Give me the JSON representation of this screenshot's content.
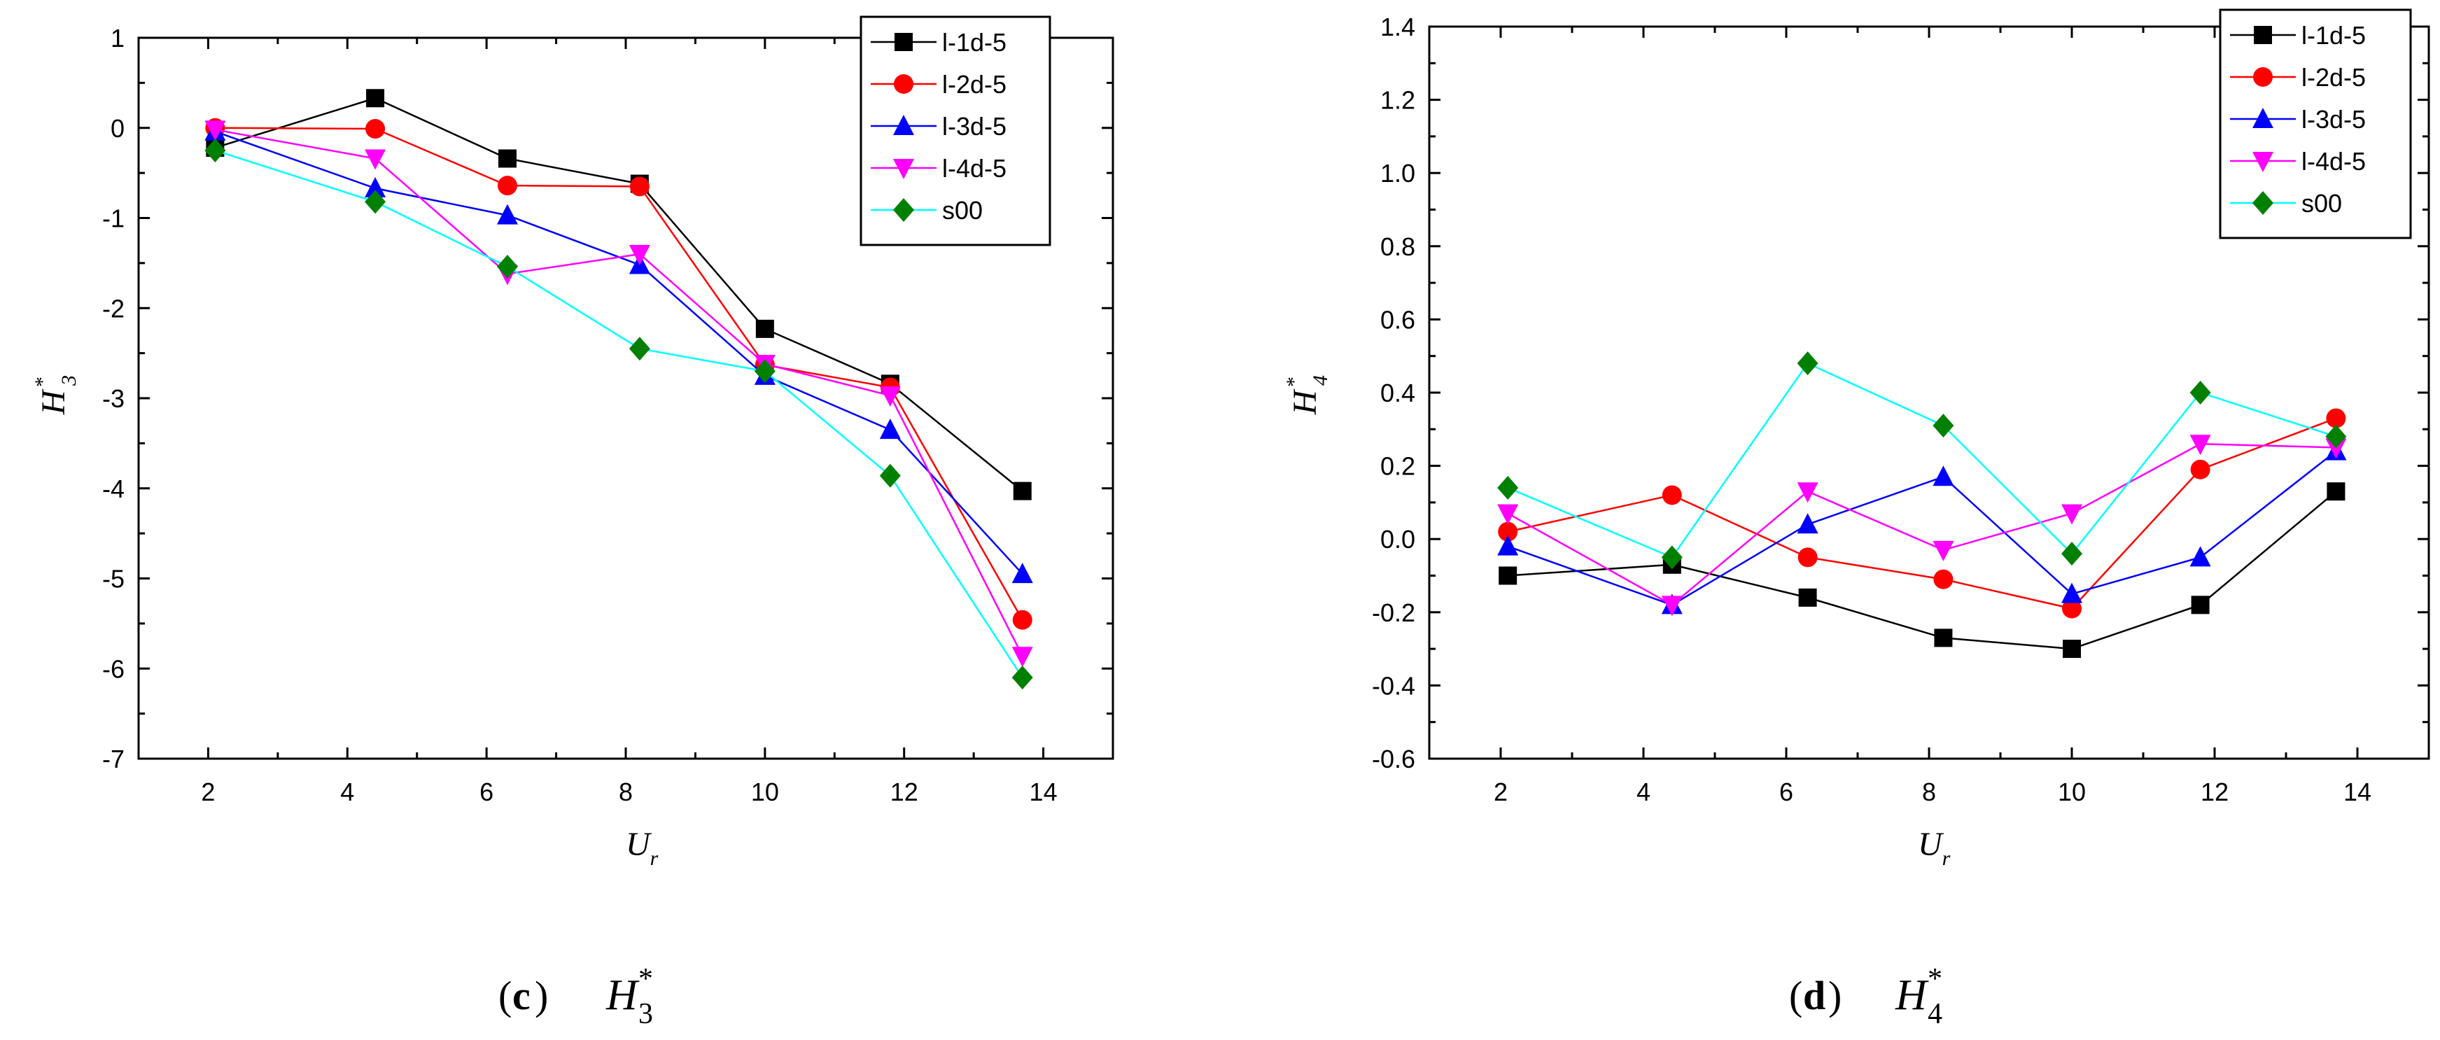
{
  "chart_data": [
    {
      "type": "line",
      "panel": "c",
      "caption": {
        "letter": "c",
        "symbol": "H",
        "subscript": "3",
        "superscript": "*"
      },
      "xlabel": {
        "symbol": "U",
        "subscript": "r"
      },
      "ylabel": {
        "symbol": "H",
        "subscript": "3",
        "superscript": "*"
      },
      "xlim": [
        1,
        15
      ],
      "ylim": [
        -7,
        1
      ],
      "xticks": [
        2,
        4,
        6,
        8,
        10,
        12,
        14
      ],
      "yticks": [
        1,
        0,
        -1,
        -2,
        -3,
        -4,
        -5,
        -6,
        -7
      ],
      "ytick_labels": [
        "1",
        "0",
        "-1",
        "-2",
        "-3",
        "-4",
        "-5",
        "-6",
        "-7"
      ],
      "legend_position": "top-right",
      "series": [
        {
          "name": "l-1d-5",
          "color": "#000000",
          "marker": "square",
          "x": [
            2.1,
            4.4,
            6.3,
            8.2,
            10.0,
            11.8,
            13.7
          ],
          "y": [
            -0.22,
            0.33,
            -0.34,
            -0.62,
            -2.23,
            -2.84,
            -4.03
          ]
        },
        {
          "name": "l-2d-5",
          "color": "#ff0000",
          "marker": "circle",
          "x": [
            2.1,
            4.4,
            6.3,
            8.2,
            10.0,
            11.8,
            13.7
          ],
          "y": [
            0.0,
            -0.01,
            -0.64,
            -0.65,
            -2.63,
            -2.88,
            -5.46
          ]
        },
        {
          "name": "l-3d-5",
          "color": "#0000ff",
          "marker": "triangle-up",
          "x": [
            2.1,
            4.4,
            6.3,
            8.2,
            10.0,
            11.8,
            13.7
          ],
          "y": [
            -0.04,
            -0.67,
            -0.97,
            -1.52,
            -2.75,
            -3.35,
            -4.95
          ]
        },
        {
          "name": "l-4d-5",
          "color": "#ff00ff",
          "marker": "triangle-down",
          "x": [
            2.1,
            4.4,
            6.3,
            8.2,
            10.0,
            11.8,
            13.7
          ],
          "y": [
            -0.02,
            -0.34,
            -1.62,
            -1.4,
            -2.62,
            -2.97,
            -5.86
          ]
        },
        {
          "name": "s00",
          "color": "#00ffff",
          "marker": "diamond",
          "marker_color": "#008000",
          "x": [
            2.1,
            4.4,
            6.3,
            8.2,
            10.0,
            11.8,
            13.7
          ],
          "y": [
            -0.25,
            -0.82,
            -1.54,
            -2.45,
            -2.7,
            -3.86,
            -6.1
          ]
        }
      ]
    },
    {
      "type": "line",
      "panel": "d",
      "caption": {
        "letter": "d",
        "symbol": "H",
        "subscript": "4",
        "superscript": "*"
      },
      "xlabel": {
        "symbol": "U",
        "subscript": "r"
      },
      "ylabel": {
        "symbol": "H",
        "subscript": "4",
        "superscript": "*"
      },
      "xlim": [
        1,
        15
      ],
      "ylim": [
        -0.6,
        1.4
      ],
      "xticks": [
        2,
        4,
        6,
        8,
        10,
        12,
        14
      ],
      "yticks": [
        1.4,
        1.2,
        1.0,
        0.8,
        0.6,
        0.4,
        0.2,
        0.0,
        -0.2,
        -0.4,
        -0.6
      ],
      "ytick_labels": [
        "1.4",
        "1.2",
        "1.0",
        "0.8",
        "0.6",
        "0.4",
        "0.2",
        "0.0",
        "-0.2",
        "-0.4",
        "-0.6"
      ],
      "legend_position": "top-right",
      "series": [
        {
          "name": "l-1d-5",
          "color": "#000000",
          "marker": "square",
          "x": [
            2.1,
            4.4,
            6.3,
            8.2,
            10.0,
            11.8,
            13.7
          ],
          "y": [
            -0.1,
            -0.07,
            -0.16,
            -0.27,
            -0.3,
            -0.18,
            0.13
          ]
        },
        {
          "name": "l-2d-5",
          "color": "#ff0000",
          "marker": "circle",
          "x": [
            2.1,
            4.4,
            6.3,
            8.2,
            10.0,
            11.8,
            13.7
          ],
          "y": [
            0.02,
            0.12,
            -0.05,
            -0.11,
            -0.19,
            0.19,
            0.33
          ]
        },
        {
          "name": "l-3d-5",
          "color": "#0000ff",
          "marker": "triangle-up",
          "x": [
            2.1,
            4.4,
            6.3,
            8.2,
            10.0,
            11.8,
            13.7
          ],
          "y": [
            -0.02,
            -0.18,
            0.04,
            0.17,
            -0.15,
            -0.05,
            0.24
          ]
        },
        {
          "name": "l-4d-5",
          "color": "#ff00ff",
          "marker": "triangle-down",
          "x": [
            2.1,
            4.4,
            6.3,
            8.2,
            10.0,
            11.8,
            13.7
          ],
          "y": [
            0.07,
            -0.18,
            0.13,
            -0.03,
            0.07,
            0.26,
            0.25
          ]
        },
        {
          "name": "s00",
          "color": "#00ffff",
          "marker": "diamond",
          "marker_color": "#008000",
          "x": [
            2.1,
            4.4,
            6.3,
            8.2,
            10.0,
            11.8,
            13.7
          ],
          "y": [
            0.14,
            -0.05,
            0.48,
            0.31,
            -0.04,
            0.4,
            0.28
          ]
        }
      ]
    }
  ]
}
